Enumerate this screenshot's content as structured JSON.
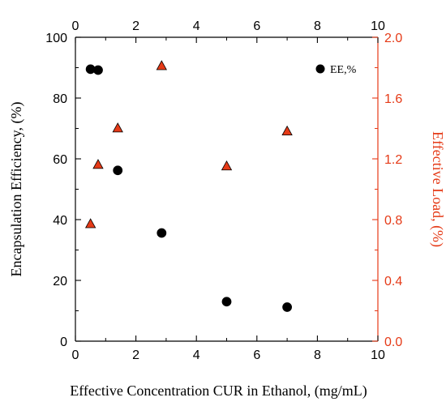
{
  "chart_data": {
    "type": "scatter",
    "xlabel": "Effective Concentration CUR in Ethanol, (mg/mL)",
    "ylabel": "Encapsulation Efficiency, (%)",
    "y2label": "Effective Load, (%)",
    "xlim": [
      0,
      10
    ],
    "ylim": [
      0,
      100
    ],
    "y2lim": [
      0,
      2.0
    ],
    "x_ticks": [
      "0",
      "2",
      "4",
      "6",
      "8",
      "10"
    ],
    "y_ticks": [
      "0",
      "20",
      "40",
      "60",
      "80",
      "100"
    ],
    "y2_ticks": [
      "0.0",
      "0.4",
      "0.8",
      "1.2",
      "1.6",
      "2.0"
    ],
    "grid": false,
    "legend_position": "top-right",
    "series": [
      {
        "name": "EE,%",
        "axis": "left",
        "marker": "circle",
        "color": "#000000",
        "points": [
          {
            "x": 0.5,
            "y": 89.5
          },
          {
            "x": 0.75,
            "y": 89.2
          },
          {
            "x": 1.4,
            "y": 56.2
          },
          {
            "x": 2.85,
            "y": 35.6
          },
          {
            "x": 5.0,
            "y": 13.0
          },
          {
            "x": 7.0,
            "y": 11.2
          }
        ]
      },
      {
        "axis": "right",
        "marker": "triangle",
        "color": "#e53a17",
        "points": [
          {
            "x": 0.5,
            "y": 0.77
          },
          {
            "x": 0.75,
            "y": 1.16
          },
          {
            "x": 1.4,
            "y": 1.4
          },
          {
            "x": 2.85,
            "y": 1.81
          },
          {
            "x": 5.0,
            "y": 1.15
          },
          {
            "x": 7.0,
            "y": 1.38
          }
        ]
      }
    ]
  },
  "colors": {
    "right_axis": "#e53a17",
    "axis": "#000000"
  }
}
